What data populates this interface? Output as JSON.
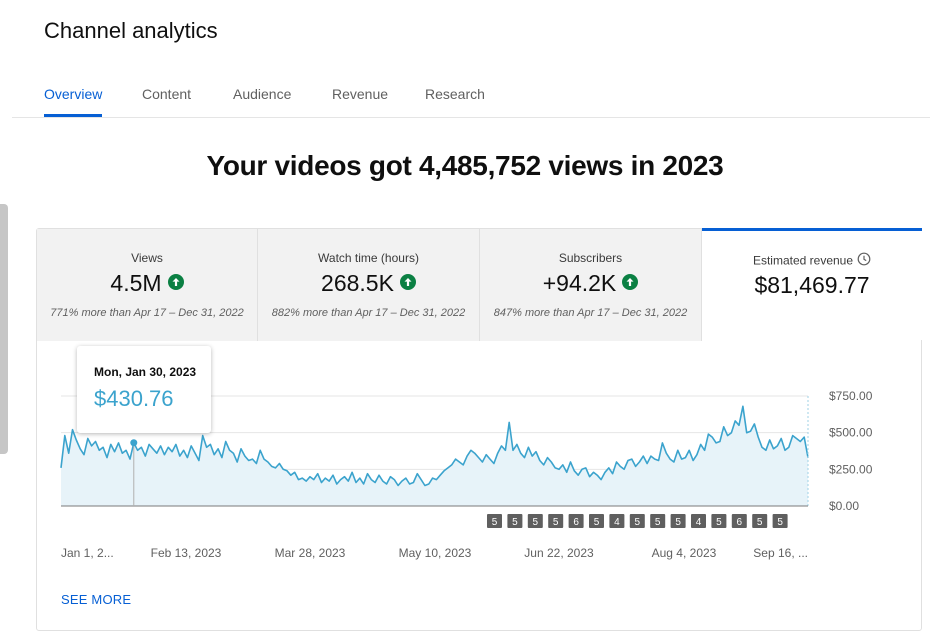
{
  "page": {
    "title": "Channel analytics"
  },
  "tabs": [
    {
      "label": "Overview",
      "active": true
    },
    {
      "label": "Content",
      "active": false
    },
    {
      "label": "Audience",
      "active": false
    },
    {
      "label": "Revenue",
      "active": false
    },
    {
      "label": "Research",
      "active": false
    }
  ],
  "headline": "Your videos got 4,485,752 views in 2023",
  "metrics": [
    {
      "label": "Views",
      "value": "4.5M",
      "trend": "up",
      "comparison": "771% more than Apr 17 – Dec 31, 2022"
    },
    {
      "label": "Watch time (hours)",
      "value": "268.5K",
      "trend": "up",
      "comparison": "882% more than Apr 17 – Dec 31, 2022"
    },
    {
      "label": "Subscribers",
      "value": "+94.2K",
      "trend": "up",
      "comparison": "847% more than Apr 17 – Dec 31, 2022"
    },
    {
      "label": "Estimated revenue",
      "value": "$81,469.77",
      "selected": true,
      "icon": "clock-icon"
    }
  ],
  "tooltip": {
    "date": "Mon, Jan 30, 2023",
    "value": "$430.76"
  },
  "see_more": "SEE MORE",
  "colors": {
    "accent": "#065fd4",
    "line": "#3ba3cd",
    "area": "#e7f3f9",
    "trend_up": "#0b8043"
  },
  "chart_data": {
    "type": "area",
    "series": [
      {
        "values": [
          260,
          480,
          360,
          520,
          450,
          390,
          350,
          460,
          410,
          440,
          380,
          400,
          330,
          420,
          370,
          430,
          360,
          380,
          320,
          431,
          380,
          400,
          340,
          420,
          390,
          360,
          410,
          350,
          400,
          370,
          420,
          340,
          380,
          330,
          410,
          360,
          310,
          480,
          400,
          420,
          350,
          390,
          330,
          440,
          380,
          360,
          300,
          390,
          340,
          310,
          320,
          290,
          380,
          320,
          300,
          270,
          260,
          290,
          250,
          240,
          210,
          230,
          180,
          190,
          170,
          200,
          180,
          220,
          160,
          190,
          170,
          210,
          150,
          180,
          200,
          170,
          230,
          160,
          190,
          150,
          220,
          180,
          160,
          210,
          170,
          150,
          200,
          180,
          140,
          170,
          190,
          150,
          160,
          220,
          180,
          140,
          150,
          190,
          180,
          210,
          240,
          260,
          280,
          320,
          300,
          280,
          340,
          380,
          360,
          330,
          300,
          350,
          320,
          290,
          360,
          410,
          380,
          570,
          380,
          420,
          360,
          330,
          400,
          340,
          370,
          310,
          280,
          330,
          300,
          260,
          250,
          280,
          230,
          300,
          240,
          210,
          250,
          260,
          200,
          230,
          210,
          180,
          230,
          260,
          220,
          300,
          270,
          250,
          310,
          320,
          270,
          300,
          340,
          290,
          340,
          320,
          310,
          430,
          360,
          320,
          300,
          380,
          320,
          330,
          380,
          310,
          350,
          420,
          380,
          490,
          470,
          430,
          440,
          540,
          480,
          500,
          580,
          550,
          680,
          500,
          510,
          560,
          470,
          400,
          380,
          450,
          390,
          410,
          460,
          380,
          400,
          480,
          460,
          440,
          470,
          330
        ]
      }
    ],
    "x_tick_labels": [
      "Jan 1, 2...",
      "Feb 13, 2023",
      "Mar 28, 2023",
      "May 10, 2023",
      "Jun 22, 2023",
      "Aug 4, 2023",
      "Sep 16, ..."
    ],
    "y_tick_labels": [
      "$750.00",
      "$500.00",
      "$250.00",
      "$0.00"
    ],
    "ylim": [
      0,
      750
    ],
    "upload_markers": [
      "5",
      "5",
      "5",
      "5",
      "6",
      "5",
      "4",
      "5",
      "5",
      "5",
      "4",
      "5",
      "6",
      "5",
      "5"
    ],
    "highlight_index": 19
  }
}
